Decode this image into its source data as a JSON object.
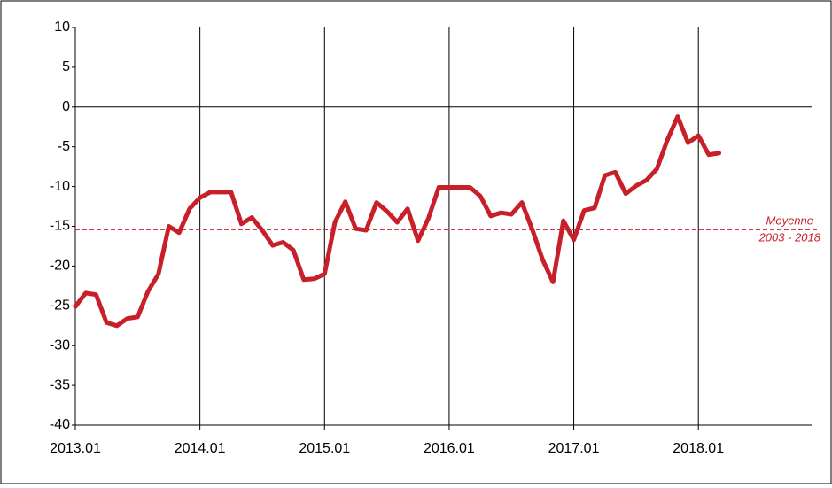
{
  "chart_data": {
    "type": "line",
    "categories": [
      "2013.01",
      null,
      null,
      null,
      null,
      null,
      null,
      null,
      null,
      null,
      null,
      null,
      "2014.01",
      null,
      null,
      null,
      null,
      null,
      null,
      null,
      null,
      null,
      null,
      null,
      "2015.01",
      null,
      null,
      null,
      null,
      null,
      null,
      null,
      null,
      null,
      null,
      null,
      "2016.01",
      null,
      null,
      null,
      null,
      null,
      null,
      null,
      null,
      null,
      null,
      null,
      "2017.01",
      null,
      null,
      null,
      null,
      null,
      null,
      null,
      null,
      null,
      null,
      null,
      "2018.01",
      null,
      null
    ],
    "series": [
      {
        "color": "#c8202a",
        "values": [
          -25.1,
          -23.4,
          -23.6,
          -27.1,
          -27.5,
          -26.6,
          -26.4,
          -23.2,
          -21.0,
          -15.0,
          -15.8,
          -12.8,
          -11.4,
          -10.7,
          -10.7,
          -10.7,
          -14.7,
          -13.9,
          -15.5,
          -17.4,
          -17.0,
          -18.0,
          -21.7,
          -21.6,
          -21.0,
          -14.5,
          -11.9,
          -15.3,
          -15.5,
          -12.0,
          -13.1,
          -14.5,
          -12.8,
          -16.8,
          -14.0,
          -10.1,
          -10.1,
          -10.1,
          -10.1,
          -11.2,
          -13.7,
          -13.3,
          -13.5,
          -12.0,
          -15.4,
          -19.2,
          -22.0,
          -14.3,
          -16.7,
          -13.0,
          -12.7,
          -8.6,
          -8.2,
          -10.9,
          -9.9,
          -9.2,
          -7.8,
          -4.2,
          -1.2,
          -4.5,
          -3.6,
          -6.0,
          -5.8
        ]
      }
    ],
    "ylim": [
      -40,
      10
    ],
    "yticks": [
      -40,
      -35,
      -30,
      -25,
      -20,
      -15,
      -10,
      -5,
      0,
      5,
      10
    ],
    "reference_line": {
      "value": -15.4,
      "color": "#c8202a",
      "label": [
        "Moyenne",
        "2003 - 2018"
      ]
    }
  }
}
